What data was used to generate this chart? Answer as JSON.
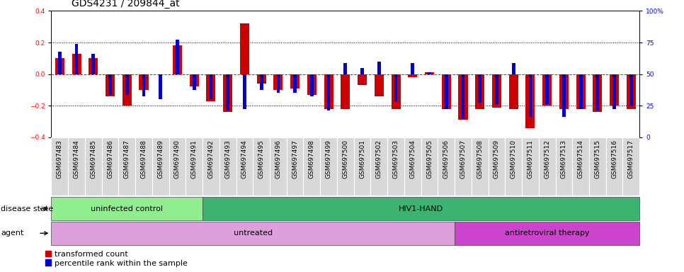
{
  "title": "GDS4231 / 209844_at",
  "samples": [
    "GSM697483",
    "GSM697484",
    "GSM697485",
    "GSM697486",
    "GSM697487",
    "GSM697488",
    "GSM697489",
    "GSM697490",
    "GSM697491",
    "GSM697492",
    "GSM697493",
    "GSM697494",
    "GSM697495",
    "GSM697496",
    "GSM697497",
    "GSM697498",
    "GSM697499",
    "GSM697500",
    "GSM697501",
    "GSM697502",
    "GSM697503",
    "GSM697504",
    "GSM697505",
    "GSM697506",
    "GSM697507",
    "GSM697508",
    "GSM697509",
    "GSM697510",
    "GSM697511",
    "GSM697512",
    "GSM697513",
    "GSM697514",
    "GSM697515",
    "GSM697516",
    "GSM697517"
  ],
  "red_bars": [
    0.1,
    0.13,
    0.1,
    -0.14,
    -0.2,
    -0.1,
    0.0,
    0.18,
    -0.08,
    -0.17,
    -0.24,
    0.32,
    -0.06,
    -0.1,
    -0.09,
    -0.13,
    -0.22,
    -0.22,
    -0.07,
    -0.14,
    -0.22,
    -0.02,
    0.01,
    -0.22,
    -0.29,
    -0.22,
    -0.21,
    -0.22,
    -0.34,
    -0.2,
    -0.22,
    -0.22,
    -0.24,
    -0.2,
    -0.22
  ],
  "blue_dots": [
    0.14,
    0.19,
    0.13,
    -0.13,
    -0.13,
    -0.14,
    -0.16,
    0.22,
    -0.1,
    -0.16,
    -0.23,
    -0.22,
    -0.1,
    -0.12,
    -0.12,
    -0.14,
    -0.23,
    0.07,
    0.04,
    0.08,
    -0.17,
    0.07,
    0.01,
    -0.22,
    -0.28,
    -0.18,
    -0.19,
    0.07,
    -0.27,
    -0.19,
    -0.27,
    -0.22,
    -0.23,
    -0.22,
    -0.2
  ],
  "disease_state_groups": [
    {
      "label": "uninfected control",
      "start": 0,
      "end": 9,
      "color": "#90EE90"
    },
    {
      "label": "HIV1-HAND",
      "start": 9,
      "end": 35,
      "color": "#3CB371"
    }
  ],
  "agent_groups": [
    {
      "label": "untreated",
      "start": 0,
      "end": 24,
      "color": "#DDA0DD"
    },
    {
      "label": "antiretroviral therapy",
      "start": 24,
      "end": 35,
      "color": "#CC44CC"
    }
  ],
  "red_color": "#CC0000",
  "blue_color": "#0000CC",
  "ylim": [
    -0.4,
    0.4
  ],
  "y2lim": [
    0,
    100
  ],
  "yticks": [
    -0.4,
    -0.2,
    0.0,
    0.2,
    0.4
  ],
  "y2ticks": [
    0,
    25,
    50,
    75,
    100
  ],
  "cell_bg": "#d8d8d8",
  "title_fontsize": 10,
  "tick_fontsize": 6.5,
  "label_fontsize": 8,
  "group_fontsize": 8
}
